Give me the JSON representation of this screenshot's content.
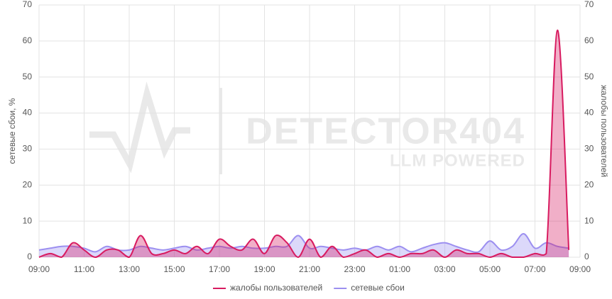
{
  "chart_data": {
    "type": "area",
    "watermark": {
      "title": "DETECTOR404",
      "subtitle": "LLM POWERED"
    },
    "y_label": "сетевые сбои, %",
    "y2_label": "жалобы пользователей",
    "categories": [
      "09:00",
      null,
      null,
      null,
      "11:00",
      null,
      null,
      null,
      "13:00",
      null,
      null,
      null,
      "15:00",
      null,
      null,
      null,
      "17:00",
      null,
      null,
      null,
      "19:00",
      null,
      null,
      null,
      "21:00",
      null,
      null,
      null,
      "23:00",
      null,
      null,
      null,
      "01:00",
      null,
      null,
      null,
      "03:00",
      null,
      null,
      null,
      "05:00",
      null,
      null,
      null,
      "07:00",
      null,
      null,
      null,
      "09:00"
    ],
    "series": [
      {
        "name": "жалобы пользователей",
        "color": "#d81b60",
        "axis": "y2",
        "values": [
          0,
          1,
          0,
          4,
          2,
          0,
          2,
          2,
          0,
          6,
          1,
          1,
          2,
          1,
          3,
          1,
          5,
          3,
          2,
          5,
          1,
          6,
          4,
          0,
          5,
          0,
          3,
          0,
          1,
          2,
          0,
          1,
          0,
          1,
          1,
          2,
          0,
          2,
          1,
          1,
          0,
          1,
          0,
          0,
          1,
          1,
          63,
          2,
          null
        ]
      },
      {
        "name": "сетевые сбои",
        "color": "#9c8ff0",
        "values": [
          2,
          2.5,
          3,
          3,
          2.5,
          1.5,
          3,
          2,
          2,
          3,
          2.5,
          2,
          2.5,
          3,
          2,
          2.5,
          3,
          2.5,
          3,
          2.5,
          2.5,
          3,
          3,
          6,
          2.5,
          3,
          2.5,
          2,
          2.5,
          2,
          3,
          2,
          3,
          1.5,
          2.5,
          3.5,
          4,
          3,
          2,
          1.5,
          4.5,
          2,
          3,
          6.5,
          2.5,
          4,
          3,
          2.5,
          null
        ]
      }
    ],
    "ylim": [
      0,
      70
    ],
    "yticks": [
      0,
      10,
      20,
      30,
      40,
      50,
      60,
      70
    ],
    "y2lim": [
      0,
      70
    ],
    "y2ticks": [
      0,
      10,
      20,
      30,
      40,
      50,
      60,
      70
    ],
    "grid": true,
    "legend": "bottom"
  }
}
